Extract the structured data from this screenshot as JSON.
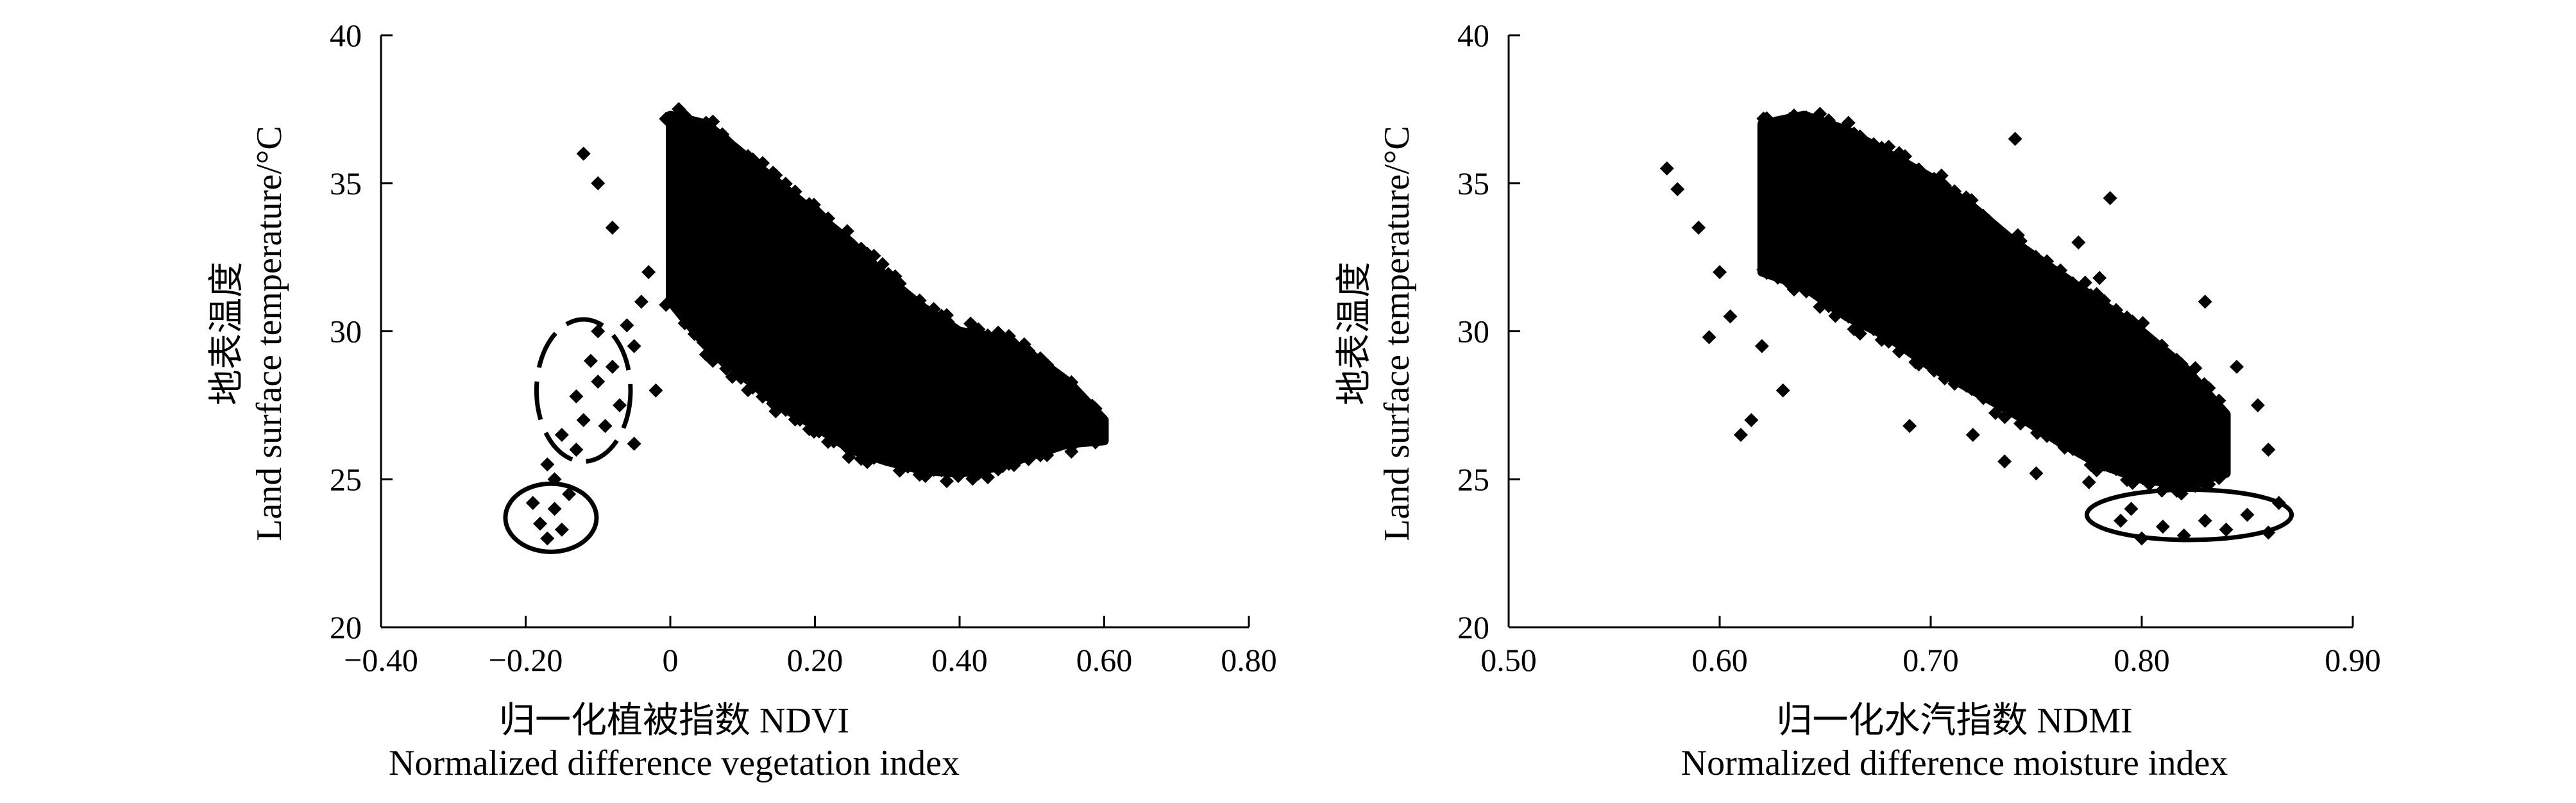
{
  "chart_data": [
    {
      "type": "scatter",
      "xlabel": "归一化植被指数 NDVI",
      "xlabel_en": "Normalized difference vegetation index",
      "ylabel": "地表温度",
      "ylabel_en": "Land surface temperature/°C",
      "xlim": [
        -0.4,
        0.8
      ],
      "ylim": [
        20,
        40
      ],
      "x_ticks": [
        "−0.40",
        "−0.20",
        "0",
        "0.20",
        "0.40",
        "0.60",
        "0.80"
      ],
      "y_ticks": [
        "20",
        "25",
        "30",
        "35",
        "40"
      ],
      "marker": "diamond",
      "marker_color": "#000000",
      "grid": false,
      "annotations": [
        {
          "shape": "dashed-ellipse",
          "center": [
            -0.12,
            28.0
          ],
          "semi_axes": [
            0.065,
            2.4
          ]
        },
        {
          "shape": "solid-ellipse",
          "center": [
            -0.165,
            23.7
          ],
          "semi_axes": [
            0.063,
            1.15
          ]
        }
      ],
      "point_cloud": {
        "main_band": [
          {
            "x": 0.0,
            "ymin": 31.0,
            "ymax": 37.3
          },
          {
            "x": 0.05,
            "ymin": 29.5,
            "ymax": 37.0
          },
          {
            "x": 0.1,
            "ymin": 28.5,
            "ymax": 36.0
          },
          {
            "x": 0.15,
            "ymin": 27.5,
            "ymax": 35.0
          },
          {
            "x": 0.2,
            "ymin": 26.8,
            "ymax": 34.0
          },
          {
            "x": 0.25,
            "ymin": 26.0,
            "ymax": 33.0
          },
          {
            "x": 0.3,
            "ymin": 25.6,
            "ymax": 31.8
          },
          {
            "x": 0.35,
            "ymin": 25.3,
            "ymax": 30.8
          },
          {
            "x": 0.4,
            "ymin": 25.2,
            "ymax": 30.0
          },
          {
            "x": 0.45,
            "ymin": 25.4,
            "ymax": 29.8
          },
          {
            "x": 0.5,
            "ymin": 25.8,
            "ymax": 29.2
          },
          {
            "x": 0.55,
            "ymin": 26.2,
            "ymax": 28.3
          },
          {
            "x": 0.6,
            "ymin": 26.3,
            "ymax": 27.0
          }
        ],
        "outliers": [
          {
            "x": -0.17,
            "y": 23.0
          },
          {
            "x": -0.18,
            "y": 23.5
          },
          {
            "x": -0.16,
            "y": 24.0
          },
          {
            "x": -0.15,
            "y": 23.3
          },
          {
            "x": -0.19,
            "y": 24.2
          },
          {
            "x": -0.14,
            "y": 24.5
          },
          {
            "x": -0.16,
            "y": 25.0
          },
          {
            "x": -0.17,
            "y": 25.5
          },
          {
            "x": -0.13,
            "y": 26.0
          },
          {
            "x": -0.15,
            "y": 26.5
          },
          {
            "x": -0.12,
            "y": 27.0
          },
          {
            "x": -0.13,
            "y": 27.8
          },
          {
            "x": -0.1,
            "y": 28.3
          },
          {
            "x": -0.08,
            "y": 28.8
          },
          {
            "x": -0.07,
            "y": 27.5
          },
          {
            "x": -0.09,
            "y": 26.8
          },
          {
            "x": -0.05,
            "y": 29.5
          },
          {
            "x": -0.06,
            "y": 30.2
          },
          {
            "x": -0.04,
            "y": 31.0
          },
          {
            "x": -0.03,
            "y": 32.0
          },
          {
            "x": -0.1,
            "y": 30.0
          },
          {
            "x": -0.08,
            "y": 33.5
          },
          {
            "x": -0.1,
            "y": 35.0
          },
          {
            "x": -0.12,
            "y": 36.0
          },
          {
            "x": -0.05,
            "y": 26.2
          },
          {
            "x": -0.02,
            "y": 28.0
          },
          {
            "x": -0.11,
            "y": 29.0
          }
        ]
      }
    },
    {
      "type": "scatter",
      "xlabel": "归一化水汽指数 NDMI",
      "xlabel_en": "Normalized difference moisture index",
      "ylabel": "地表温度",
      "ylabel_en": "Land surface temperature/°C",
      "xlim": [
        0.5,
        0.9
      ],
      "ylim": [
        20,
        40
      ],
      "x_ticks": [
        "0.50",
        "0.60",
        "0.70",
        "0.80",
        "0.90"
      ],
      "y_ticks": [
        "20",
        "25",
        "30",
        "35",
        "40"
      ],
      "marker": "diamond",
      "marker_color": "#000000",
      "grid": false,
      "annotations": [
        {
          "shape": "solid-ellipse",
          "center": [
            0.8225,
            23.8
          ],
          "semi_axes": [
            0.0485,
            0.85
          ]
        }
      ],
      "point_cloud": {
        "main_band": [
          {
            "x": 0.62,
            "ymin": 32.0,
            "ymax": 37.0
          },
          {
            "x": 0.64,
            "ymin": 31.5,
            "ymax": 37.3
          },
          {
            "x": 0.66,
            "ymin": 30.5,
            "ymax": 36.8
          },
          {
            "x": 0.68,
            "ymin": 29.8,
            "ymax": 36.0
          },
          {
            "x": 0.7,
            "ymin": 28.8,
            "ymax": 35.2
          },
          {
            "x": 0.72,
            "ymin": 28.0,
            "ymax": 34.2
          },
          {
            "x": 0.74,
            "ymin": 27.2,
            "ymax": 33.0
          },
          {
            "x": 0.76,
            "ymin": 26.3,
            "ymax": 32.0
          },
          {
            "x": 0.78,
            "ymin": 25.5,
            "ymax": 31.0
          },
          {
            "x": 0.8,
            "ymin": 25.0,
            "ymax": 30.0
          },
          {
            "x": 0.82,
            "ymin": 24.8,
            "ymax": 28.8
          },
          {
            "x": 0.84,
            "ymin": 25.2,
            "ymax": 27.2
          }
        ],
        "outliers": [
          {
            "x": 0.575,
            "y": 35.5
          },
          {
            "x": 0.58,
            "y": 34.8
          },
          {
            "x": 0.59,
            "y": 33.5
          },
          {
            "x": 0.6,
            "y": 32.0
          },
          {
            "x": 0.605,
            "y": 30.5
          },
          {
            "x": 0.61,
            "y": 26.5
          },
          {
            "x": 0.615,
            "y": 27.0
          },
          {
            "x": 0.62,
            "y": 29.5
          },
          {
            "x": 0.63,
            "y": 28.0
          },
          {
            "x": 0.595,
            "y": 29.8
          },
          {
            "x": 0.69,
            "y": 26.8
          },
          {
            "x": 0.72,
            "y": 26.5
          },
          {
            "x": 0.735,
            "y": 25.6
          },
          {
            "x": 0.75,
            "y": 25.2
          },
          {
            "x": 0.775,
            "y": 24.9
          },
          {
            "x": 0.785,
            "y": 34.5
          },
          {
            "x": 0.77,
            "y": 33.0
          },
          {
            "x": 0.78,
            "y": 31.8
          },
          {
            "x": 0.74,
            "y": 36.5
          },
          {
            "x": 0.83,
            "y": 31.0
          },
          {
            "x": 0.845,
            "y": 28.8
          },
          {
            "x": 0.855,
            "y": 27.5
          },
          {
            "x": 0.86,
            "y": 26.0
          },
          {
            "x": 0.865,
            "y": 24.2
          },
          {
            "x": 0.86,
            "y": 23.2
          },
          {
            "x": 0.8,
            "y": 23.0
          },
          {
            "x": 0.81,
            "y": 23.4
          },
          {
            "x": 0.82,
            "y": 23.1
          },
          {
            "x": 0.83,
            "y": 23.6
          },
          {
            "x": 0.84,
            "y": 23.3
          },
          {
            "x": 0.85,
            "y": 23.8
          },
          {
            "x": 0.79,
            "y": 23.6
          },
          {
            "x": 0.795,
            "y": 24.0
          }
        ]
      }
    }
  ]
}
